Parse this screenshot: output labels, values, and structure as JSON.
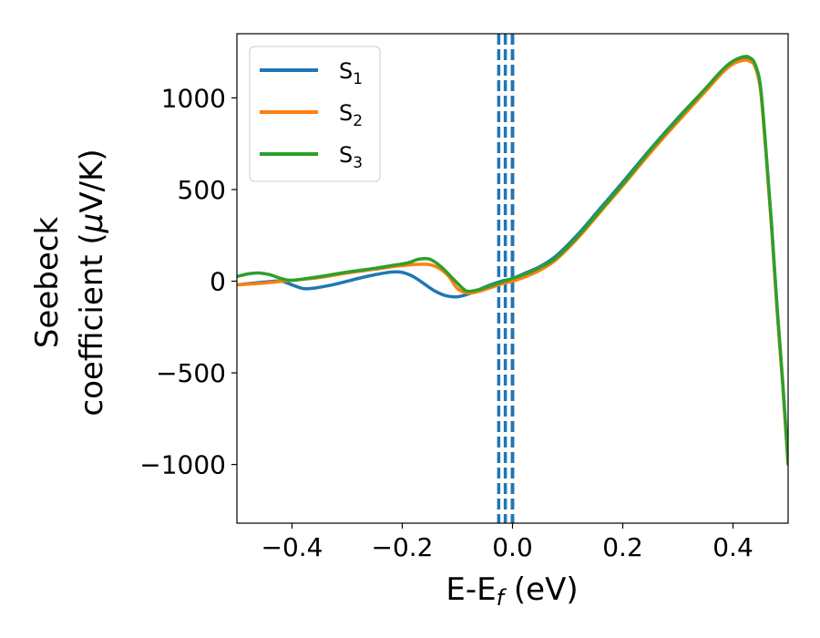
{
  "chart_data": {
    "type": "line",
    "title": "",
    "xlabel": "E-E",
    "xlabel_sub": "f",
    "xlabel_unit": " (eV)",
    "ylabel_line1": "Seebeck",
    "ylabel_line2_pre": "coefficient  (",
    "ylabel_mu": "μ",
    "ylabel_line2_post": "V/K)",
    "xlim": [
      -0.5,
      0.5
    ],
    "ylim": [
      -1320,
      1350
    ],
    "x_ticks": [
      -0.4,
      -0.2,
      0.0,
      0.2,
      0.4
    ],
    "x_tick_labels": [
      "−0.4",
      "−0.2",
      "0.0",
      "0.2",
      "0.4"
    ],
    "y_ticks": [
      -1000,
      -500,
      0,
      500,
      1000
    ],
    "y_tick_labels": [
      "−1000",
      "−500",
      "0",
      "500",
      "1000"
    ],
    "grid": false,
    "legend_position": "top-left",
    "vertical_lines": [
      {
        "x": -0.025,
        "color": "#1f77b4",
        "style": "dashed"
      },
      {
        "x": -0.013,
        "color": "#1f77b4",
        "style": "dashed"
      },
      {
        "x": 0.0,
        "color": "#000000",
        "style": "dashed"
      },
      {
        "x": 0.0,
        "color": "#1f77b4",
        "style": "dashed"
      }
    ],
    "series": [
      {
        "name": "S",
        "subscript": "1",
        "color": "#1f77b4",
        "points": [
          [
            -0.5,
            -20
          ],
          [
            -0.45,
            -5
          ],
          [
            -0.42,
            0
          ],
          [
            -0.4,
            -20
          ],
          [
            -0.38,
            -40
          ],
          [
            -0.36,
            -38
          ],
          [
            -0.32,
            -15
          ],
          [
            -0.28,
            15
          ],
          [
            -0.25,
            35
          ],
          [
            -0.22,
            50
          ],
          [
            -0.2,
            48
          ],
          [
            -0.18,
            25
          ],
          [
            -0.16,
            -15
          ],
          [
            -0.14,
            -55
          ],
          [
            -0.12,
            -80
          ],
          [
            -0.1,
            -85
          ],
          [
            -0.08,
            -70
          ],
          [
            -0.06,
            -45
          ],
          [
            -0.04,
            -20
          ],
          [
            -0.02,
            0
          ],
          [
            0.0,
            15
          ],
          [
            0.02,
            40
          ],
          [
            0.05,
            80
          ],
          [
            0.08,
            140
          ],
          [
            0.12,
            260
          ],
          [
            0.16,
            400
          ],
          [
            0.2,
            540
          ],
          [
            0.25,
            720
          ],
          [
            0.3,
            890
          ],
          [
            0.35,
            1050
          ],
          [
            0.38,
            1150
          ],
          [
            0.4,
            1200
          ],
          [
            0.42,
            1220
          ],
          [
            0.43,
            1215
          ],
          [
            0.44,
            1180
          ],
          [
            0.45,
            1050
          ],
          [
            0.46,
            700
          ],
          [
            0.47,
            300
          ],
          [
            0.48,
            -150
          ],
          [
            0.49,
            -550
          ],
          [
            0.5,
            -1000
          ]
        ]
      },
      {
        "name": "S",
        "subscript": "2",
        "color": "#ff7f0e",
        "points": [
          [
            -0.5,
            -20
          ],
          [
            -0.45,
            -10
          ],
          [
            -0.4,
            5
          ],
          [
            -0.35,
            20
          ],
          [
            -0.3,
            45
          ],
          [
            -0.25,
            65
          ],
          [
            -0.2,
            85
          ],
          [
            -0.15,
            90
          ],
          [
            -0.12,
            40
          ],
          [
            -0.1,
            -40
          ],
          [
            -0.08,
            -65
          ],
          [
            -0.06,
            -55
          ],
          [
            -0.04,
            -35
          ],
          [
            -0.02,
            -15
          ],
          [
            0.0,
            0
          ],
          [
            0.02,
            20
          ],
          [
            0.05,
            60
          ],
          [
            0.08,
            120
          ],
          [
            0.12,
            240
          ],
          [
            0.16,
            380
          ],
          [
            0.2,
            520
          ],
          [
            0.25,
            700
          ],
          [
            0.3,
            870
          ],
          [
            0.35,
            1035
          ],
          [
            0.38,
            1135
          ],
          [
            0.4,
            1185
          ],
          [
            0.42,
            1205
          ],
          [
            0.43,
            1200
          ],
          [
            0.44,
            1170
          ],
          [
            0.45,
            1040
          ],
          [
            0.46,
            690
          ],
          [
            0.47,
            290
          ],
          [
            0.48,
            -160
          ],
          [
            0.49,
            -560
          ],
          [
            0.5,
            -1000
          ]
        ]
      },
      {
        "name": "S",
        "subscript": "3",
        "color": "#2ca02c",
        "points": [
          [
            -0.5,
            25
          ],
          [
            -0.48,
            40
          ],
          [
            -0.46,
            45
          ],
          [
            -0.44,
            35
          ],
          [
            -0.42,
            15
          ],
          [
            -0.4,
            5
          ],
          [
            -0.35,
            25
          ],
          [
            -0.3,
            50
          ],
          [
            -0.25,
            70
          ],
          [
            -0.22,
            85
          ],
          [
            -0.19,
            100
          ],
          [
            -0.17,
            120
          ],
          [
            -0.15,
            120
          ],
          [
            -0.13,
            80
          ],
          [
            -0.11,
            20
          ],
          [
            -0.09,
            -40
          ],
          [
            -0.08,
            -55
          ],
          [
            -0.06,
            -45
          ],
          [
            -0.04,
            -25
          ],
          [
            -0.02,
            -5
          ],
          [
            0.0,
            15
          ],
          [
            0.02,
            35
          ],
          [
            0.05,
            75
          ],
          [
            0.08,
            130
          ],
          [
            0.12,
            250
          ],
          [
            0.16,
            390
          ],
          [
            0.2,
            530
          ],
          [
            0.25,
            715
          ],
          [
            0.3,
            885
          ],
          [
            0.35,
            1050
          ],
          [
            0.38,
            1150
          ],
          [
            0.4,
            1200
          ],
          [
            0.42,
            1225
          ],
          [
            0.43,
            1220
          ],
          [
            0.44,
            1185
          ],
          [
            0.45,
            1060
          ],
          [
            0.46,
            710
          ],
          [
            0.47,
            310
          ],
          [
            0.48,
            -140
          ],
          [
            0.49,
            -540
          ],
          [
            0.5,
            -990
          ]
        ]
      }
    ]
  }
}
